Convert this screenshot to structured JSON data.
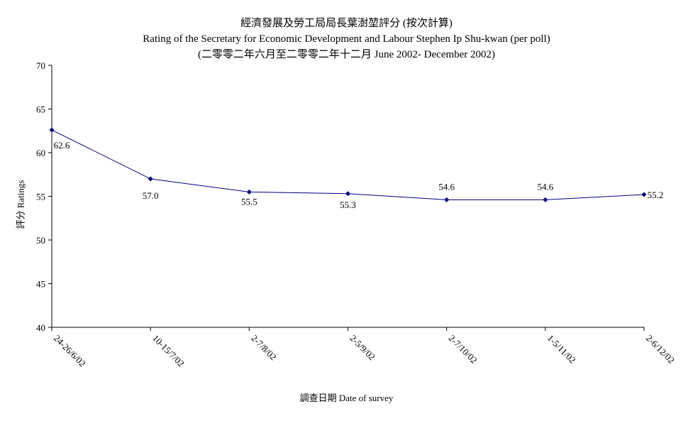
{
  "chart_data": {
    "type": "line",
    "title": "經濟發展及勞工局局長葉澍堃評分 (按次計算)",
    "subtitle": "Rating of the Secretary for Economic Development and Labour Stephen Ip Shu-kwan  (per poll)",
    "subtitle2": "(二零零二年六月至二零零二年十二月 June 2002- December 2002)",
    "xlabel": "調查日期 Date of survey",
    "ylabel": "評分 Ratings",
    "categories": [
      "24-26/6/02",
      "10-15/7/02",
      "2-7/8/02",
      "2-5/9/02",
      "2-7/10/02",
      "1-5/11/02",
      "2-6/12/02"
    ],
    "series": [
      {
        "values": [
          62.6,
          57.0,
          55.5,
          55.3,
          54.6,
          54.6,
          55.2
        ]
      }
    ],
    "data_labels": [
      "62.6",
      "57.0",
      "55.5",
      "55.3",
      "54.6",
      "54.6",
      "55.2"
    ],
    "ylim": [
      40,
      70
    ],
    "yticks": [
      40,
      45,
      50,
      55,
      60,
      65,
      70
    ],
    "grid": false,
    "line_color": "#000080"
  }
}
